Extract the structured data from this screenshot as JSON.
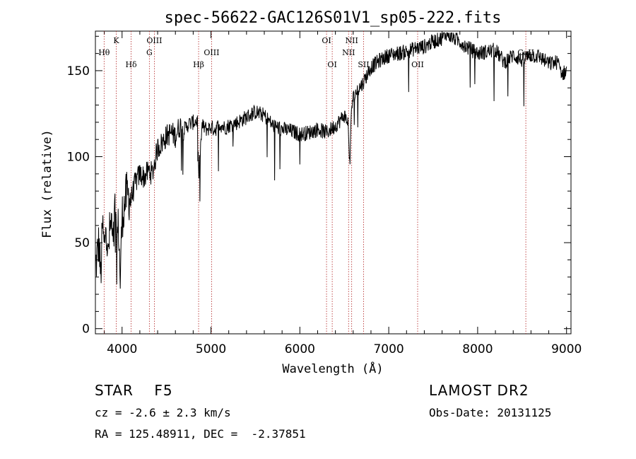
{
  "chart_data": {
    "type": "line",
    "title": "spec-56622-GAC126S01V1_sp05-222.fits",
    "xlabel": "Wavelength (Å)",
    "ylabel": "Flux (relative)",
    "xlim": [
      3700,
      9050
    ],
    "ylim": [
      -3,
      173
    ],
    "xticks": [
      4000,
      5000,
      6000,
      7000,
      8000,
      9000
    ],
    "yticks": [
      0,
      50,
      100,
      150
    ],
    "grid": false,
    "series": [
      {
        "x": [
          3700,
          3740,
          3760,
          3780,
          3800,
          3820,
          3840,
          3860,
          3880,
          3900,
          3920,
          3940,
          3960,
          3980,
          4000,
          4050,
          4100,
          4150,
          4200,
          4250,
          4300,
          4340,
          4400,
          4450,
          4500,
          4550,
          4600,
          4650,
          4700,
          4750,
          4800,
          4850,
          4861,
          4900,
          4950,
          5000,
          5050,
          5100,
          5150,
          5200,
          5300,
          5400,
          5500,
          5600,
          5700,
          5800,
          5900,
          6000,
          6100,
          6200,
          6300,
          6400,
          6500,
          6540,
          6563,
          6580,
          6600,
          6650,
          6700,
          6750,
          6800,
          6900,
          7000,
          7100,
          7200,
          7300,
          7400,
          7500,
          7600,
          7650,
          7700,
          7800,
          7900,
          8000,
          8100,
          8200,
          8300,
          8400,
          8500,
          8600,
          8700,
          8800,
          8900,
          8950,
          9000
        ],
        "y": [
          35,
          50,
          30,
          60,
          45,
          65,
          40,
          55,
          62,
          45,
          70,
          50,
          60,
          28,
          65,
          78,
          75,
          85,
          90,
          88,
          92,
          90,
          105,
          108,
          112,
          114,
          112,
          118,
          116,
          119,
          120,
          121,
          88,
          118,
          116,
          117,
          116,
          119,
          117,
          118,
          120,
          123,
          126,
          124,
          118,
          116,
          115,
          113,
          114,
          116,
          114,
          118,
          124,
          120,
          95,
          128,
          134,
          139,
          142,
          147,
          152,
          156,
          159,
          160,
          161,
          163,
          164,
          167,
          169,
          172,
          170,
          167,
          163,
          160,
          161,
          162,
          155,
          159,
          156,
          159,
          158,
          154,
          155,
          148,
          150
        ]
      }
    ],
    "emission_lines": [
      {
        "label": "Hθ",
        "x": 3798,
        "row": 2
      },
      {
        "label": "K",
        "x": 3934,
        "row": 1
      },
      {
        "label": "Hδ",
        "x": 4102,
        "row": 3
      },
      {
        "label": "OIII",
        "x": 4363,
        "row": 1
      },
      {
        "label": "G",
        "x": 4307,
        "row": 2
      },
      {
        "label": "Hβ",
        "x": 4861,
        "row": 3
      },
      {
        "label": "OIII",
        "x": 5007,
        "row": 2
      },
      {
        "label": "OI",
        "x": 6300,
        "row": 1
      },
      {
        "label": "OI",
        "x": 6364,
        "row": 3
      },
      {
        "label": "NII",
        "x": 6548,
        "row": 2
      },
      {
        "label": "NII",
        "x": 6583,
        "row": 1
      },
      {
        "label": "SII",
        "x": 6717,
        "row": 3
      },
      {
        "label": "OII",
        "x": 7325,
        "row": 3
      },
      {
        "label": "CaII",
        "x": 8542,
        "row": 2
      }
    ]
  },
  "info": {
    "classification": "STAR    F5",
    "velocity": "cz = -2.6 ± 2.3 km/s",
    "coords": "RA = 125.48911, DEC =  -2.37851",
    "survey": "LAMOST DR2",
    "obs_date": "Obs-Date: 20131125"
  }
}
